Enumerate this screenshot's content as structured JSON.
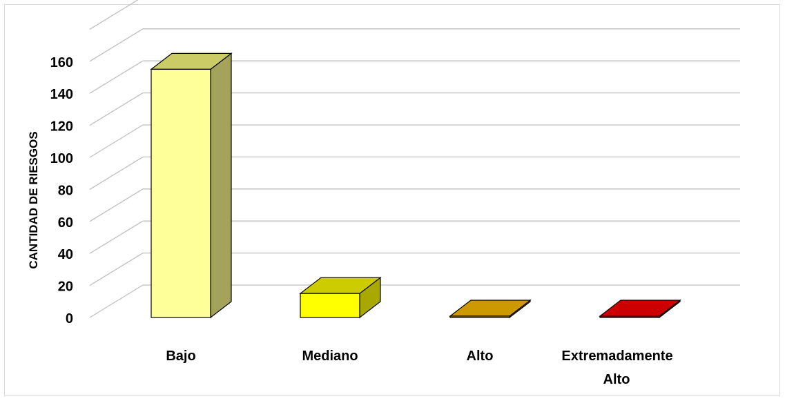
{
  "chart_data": {
    "type": "bar",
    "categories": [
      "Bajo",
      "Mediano",
      "Alto",
      "Extremadamente Alto"
    ],
    "category_lines": [
      [
        "Bajo"
      ],
      [
        "Mediano"
      ],
      [
        "Alto"
      ],
      [
        "Extremadamente",
        "Alto"
      ]
    ],
    "values": [
      155,
      15,
      0,
      0
    ],
    "colors": [
      {
        "front": "#ffff99",
        "top": "#cccc66",
        "side": "#a3a35c"
      },
      {
        "front": "#ffff00",
        "top": "#cccc00",
        "side": "#a8a800"
      },
      {
        "front": "#cc9900",
        "top": "#cc9900",
        "side": "#a87d00"
      },
      {
        "front": "#cc0000",
        "top": "#cc0000",
        "side": "#a80000"
      }
    ],
    "title": "",
    "xlabel": "",
    "ylabel": "CANTIDAD DE RIESGOS",
    "ylim": [
      0,
      160
    ],
    "yticks": [
      0,
      20,
      40,
      60,
      80,
      100,
      120,
      140,
      160
    ],
    "grid": true,
    "legend": "none",
    "style": "3d"
  }
}
